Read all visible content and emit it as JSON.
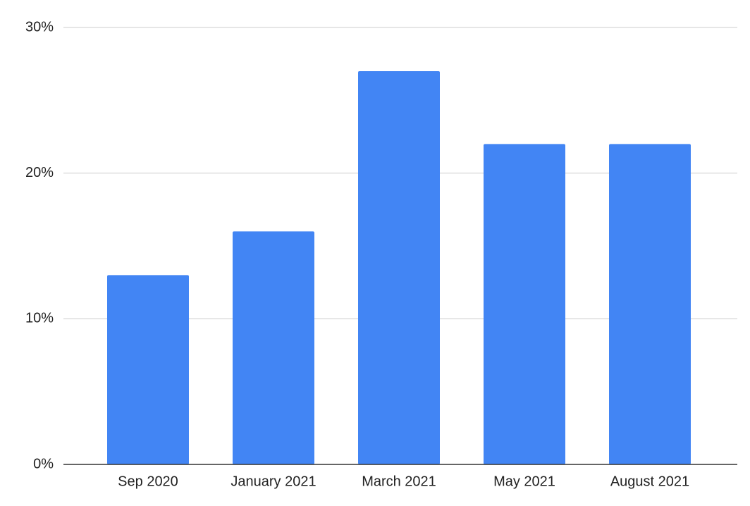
{
  "chart_data": {
    "type": "bar",
    "categories": [
      "Sep 2020",
      "January 2021",
      "March 2021",
      "May 2021",
      "August 2021"
    ],
    "values": [
      13,
      16,
      27,
      22,
      22
    ],
    "color": "#4285f4",
    "ylim": [
      0,
      30
    ],
    "yticks": [
      {
        "value": 0,
        "label": "0%"
      },
      {
        "value": 10,
        "label": "10%"
      },
      {
        "value": 20,
        "label": "20%"
      },
      {
        "value": 30,
        "label": "30%"
      }
    ],
    "grid": true
  }
}
